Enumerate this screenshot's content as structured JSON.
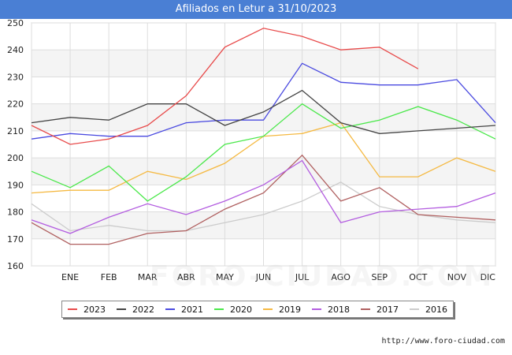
{
  "title": "Afiliados en Letur a 31/10/2023",
  "watermark": "FORO-CIUDAD.COM",
  "footer": "http://www.foro-ciudad.com",
  "chart_data": {
    "type": "line",
    "title": "Afiliados en Letur a 31/10/2023",
    "xlabel": "",
    "ylabel": "",
    "ylim": [
      160,
      250
    ],
    "yticks": [
      160,
      170,
      180,
      190,
      200,
      210,
      220,
      230,
      240,
      250
    ],
    "categories": [
      "",
      "ENE",
      "FEB",
      "MAR",
      "ABR",
      "MAY",
      "JUN",
      "JUL",
      "AGO",
      "SEP",
      "OCT",
      "NOV",
      "DIC"
    ],
    "grid": true,
    "legend_position": "bottom",
    "series": [
      {
        "name": "2023",
        "color": "#e84b4b",
        "values": [
          212,
          205,
          207,
          212,
          223,
          241,
          248,
          245,
          240,
          241,
          233,
          null,
          null
        ]
      },
      {
        "name": "2022",
        "color": "#444444",
        "values": [
          213,
          215,
          214,
          220,
          220,
          212,
          217,
          225,
          213,
          209,
          210,
          211,
          212
        ]
      },
      {
        "name": "2021",
        "color": "#4a4ae0",
        "values": [
          207,
          209,
          208,
          208,
          213,
          214,
          214,
          235,
          228,
          227,
          227,
          229,
          213
        ]
      },
      {
        "name": "2020",
        "color": "#4ae84a",
        "values": [
          195,
          189,
          197,
          184,
          193,
          205,
          208,
          220,
          211,
          214,
          219,
          214,
          207
        ]
      },
      {
        "name": "2019",
        "color": "#f5b942",
        "values": [
          187,
          188,
          188,
          195,
          192,
          198,
          208,
          209,
          213,
          193,
          193,
          200,
          195
        ]
      },
      {
        "name": "2018",
        "color": "#b35de0",
        "values": [
          177,
          172,
          178,
          183,
          179,
          184,
          190,
          199,
          176,
          180,
          181,
          182,
          187
        ]
      },
      {
        "name": "2017",
        "color": "#b06060",
        "values": [
          176,
          168,
          168,
          172,
          173,
          181,
          187,
          201,
          184,
          189,
          179,
          178,
          177
        ]
      },
      {
        "name": "2016",
        "color": "#cccccc",
        "values": [
          183,
          173,
          175,
          173,
          173,
          176,
          179,
          184,
          191,
          182,
          179,
          177,
          176
        ]
      }
    ]
  }
}
